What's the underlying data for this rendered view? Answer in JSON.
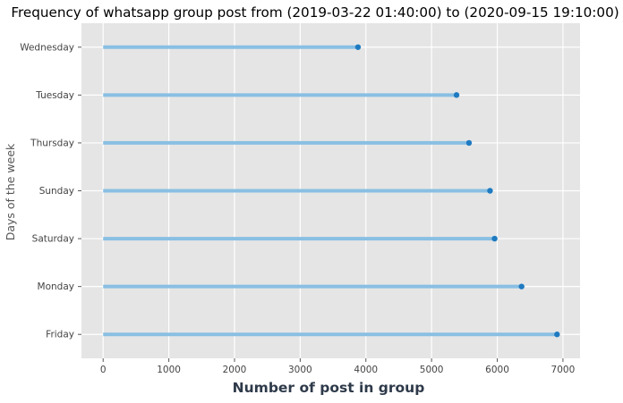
{
  "chart_data": {
    "type": "lollipop-horizontal",
    "title": "Frequency of whatsapp group post from (2019-03-22 01:40:00) to (2020-09-15 19:10:00)",
    "xlabel": "Number of post in group",
    "ylabel": "Days of the week",
    "categories": [
      "Wednesday",
      "Tuesday",
      "Thursday",
      "Sunday",
      "Saturday",
      "Monday",
      "Friday"
    ],
    "values": [
      3880,
      5380,
      5570,
      5890,
      5960,
      6370,
      6910
    ],
    "xticks": [
      0,
      1000,
      2000,
      3000,
      4000,
      5000,
      6000,
      7000
    ],
    "xlim": [
      -330,
      7260
    ],
    "grid": true,
    "colors": {
      "background": "#e5e5e5",
      "grid": "#ffffff",
      "stem": "#89bfe3",
      "marker": "#1f7bc1",
      "title": "#000000",
      "xlabel": "#2e3a4a",
      "ylabel": "#555555",
      "tick": "#444444"
    }
  }
}
